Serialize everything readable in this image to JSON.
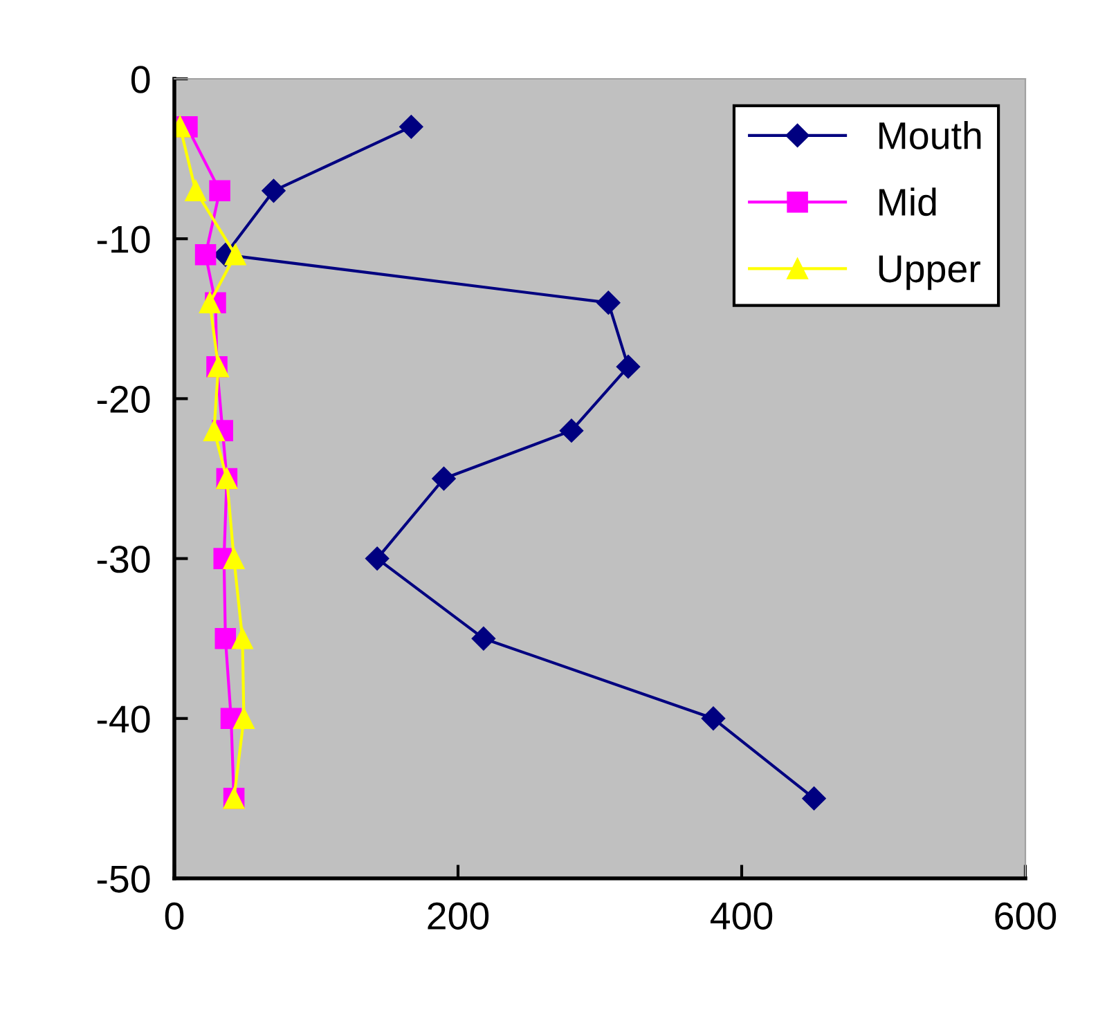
{
  "chart_data": {
    "type": "line",
    "xlim": [
      0,
      600
    ],
    "xticks": [
      0,
      200,
      400,
      600
    ],
    "ylim": [
      -50,
      0
    ],
    "yticks": [
      -50,
      -40,
      -30,
      -20,
      -10,
      0
    ],
    "grid": false,
    "legend": "top right",
    "line_style": "solid",
    "series": [
      {
        "name": "Mouth",
        "color": "#000080",
        "marker": "diamond",
        "x": [
          167,
          70,
          36,
          306,
          320,
          280,
          190,
          143,
          218,
          380,
          451
        ],
        "values": [
          -3,
          -7,
          -11,
          -14,
          -18,
          -22,
          -25,
          -30,
          -35,
          -40,
          -45
        ]
      },
      {
        "name": "Mid",
        "color": "#ff00ff",
        "marker": "square",
        "x": [
          9,
          32,
          22,
          29,
          30,
          34,
          37,
          35,
          36,
          40,
          42
        ],
        "values": [
          -3,
          -7,
          -11,
          -14,
          -18,
          -22,
          -25,
          -30,
          -35,
          -40,
          -45
        ]
      },
      {
        "name": "Upper",
        "color": "#ffff00",
        "marker": "triangle",
        "x": [
          4,
          15,
          43,
          25,
          31,
          28,
          37,
          42,
          48,
          49,
          42
        ],
        "values": [
          -3,
          -7,
          -11,
          -14,
          -18,
          -22,
          -25,
          -30,
          -35,
          -40,
          -45
        ]
      }
    ]
  }
}
